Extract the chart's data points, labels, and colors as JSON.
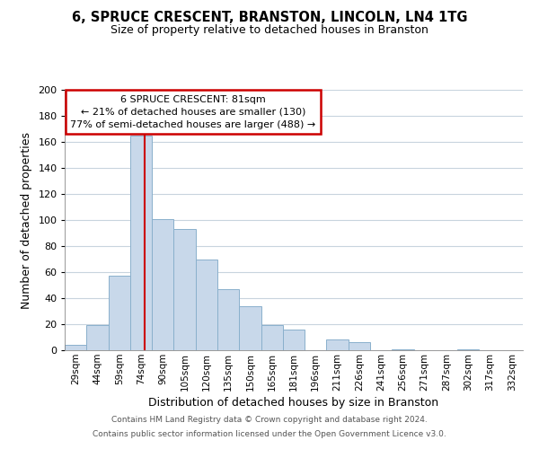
{
  "title": "6, SPRUCE CRESCENT, BRANSTON, LINCOLN, LN4 1TG",
  "subtitle": "Size of property relative to detached houses in Branston",
  "xlabel": "Distribution of detached houses by size in Branston",
  "ylabel": "Number of detached properties",
  "bar_color": "#c8d8ea",
  "bar_edge_color": "#8ab0cc",
  "categories": [
    "29sqm",
    "44sqm",
    "59sqm",
    "74sqm",
    "90sqm",
    "105sqm",
    "120sqm",
    "135sqm",
    "150sqm",
    "165sqm",
    "181sqm",
    "196sqm",
    "211sqm",
    "226sqm",
    "241sqm",
    "256sqm",
    "271sqm",
    "287sqm",
    "302sqm",
    "317sqm",
    "332sqm"
  ],
  "values": [
    4,
    19,
    57,
    165,
    101,
    93,
    70,
    47,
    34,
    19,
    16,
    0,
    8,
    6,
    0,
    1,
    0,
    0,
    1,
    0,
    0
  ],
  "ylim": [
    0,
    200
  ],
  "yticks": [
    0,
    20,
    40,
    60,
    80,
    100,
    120,
    140,
    160,
    180,
    200
  ],
  "annotation_title": "6 SPRUCE CRESCENT: 81sqm",
  "annotation_line1": "← 21% of detached houses are smaller (130)",
  "annotation_line2": "77% of semi-detached houses are larger (488) →",
  "annotation_box_color": "#ffffff",
  "annotation_box_edge": "#cc0000",
  "property_line_color": "#cc0000",
  "property_line_xidx": 3.15,
  "footer1": "Contains HM Land Registry data © Crown copyright and database right 2024.",
  "footer2": "Contains public sector information licensed under the Open Government Licence v3.0.",
  "background_color": "#ffffff",
  "grid_color": "#c8d4de"
}
